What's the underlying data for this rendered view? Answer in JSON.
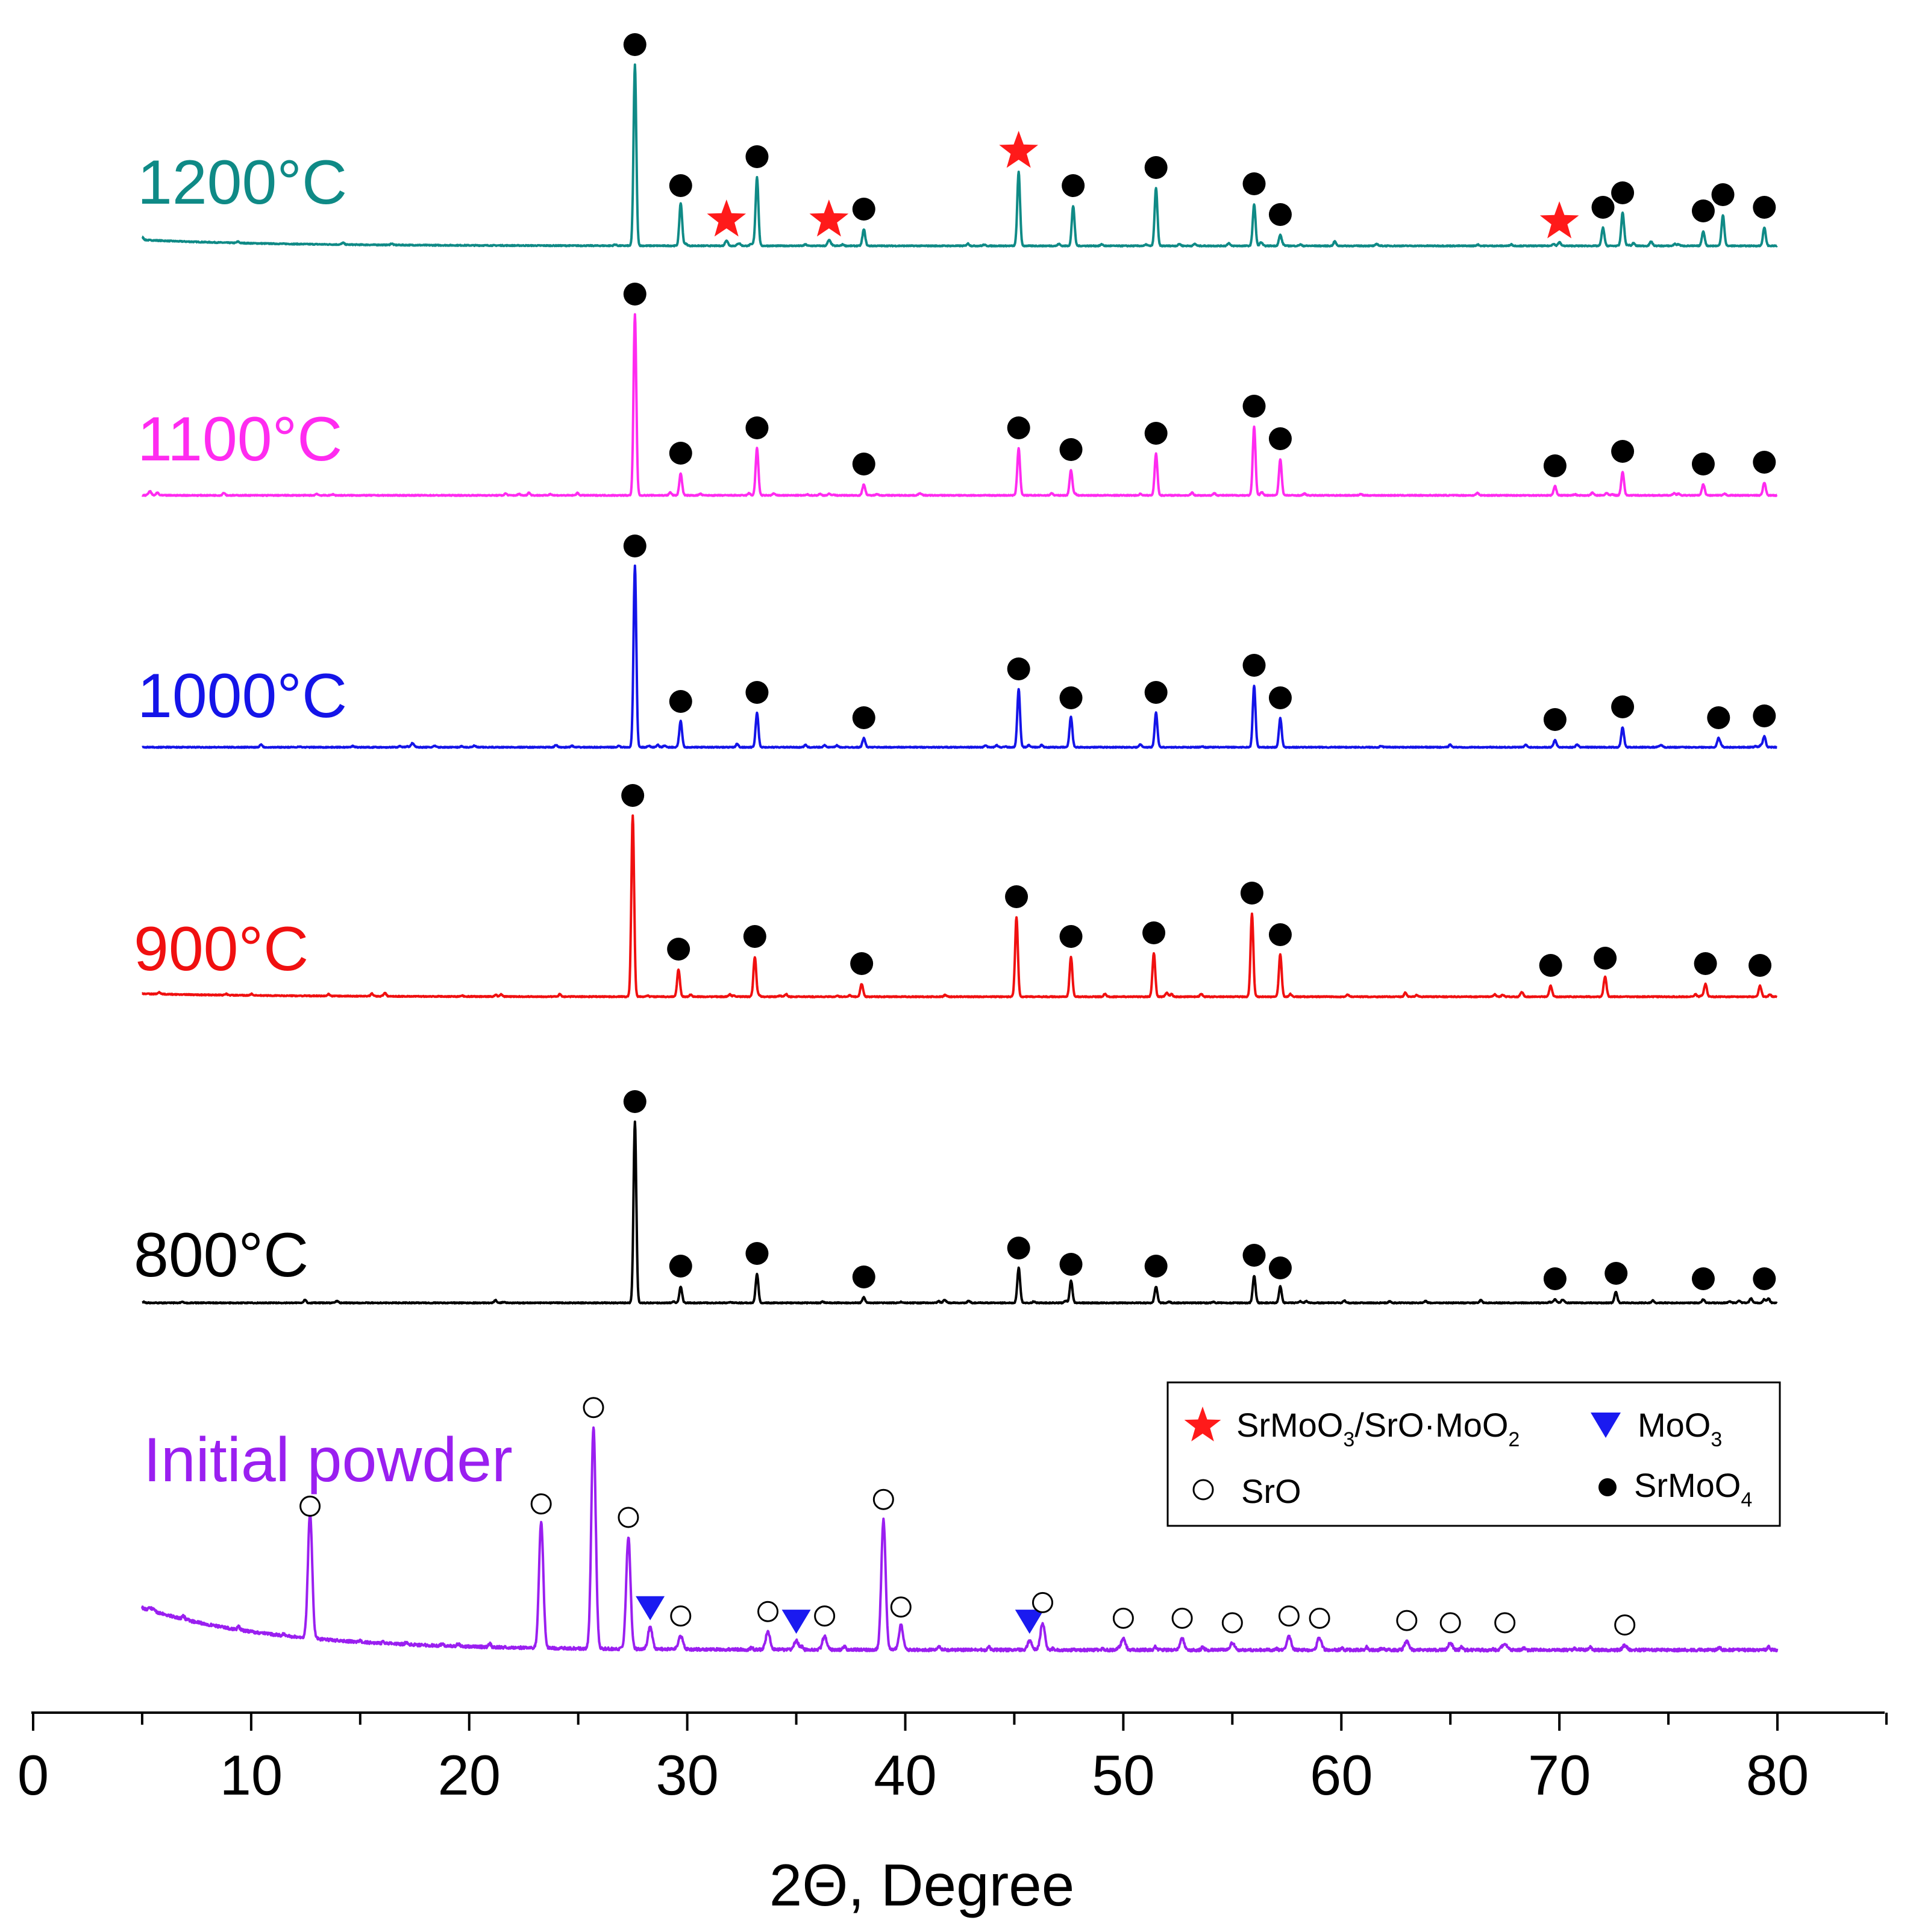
{
  "chart_data": {
    "type": "line",
    "title": "",
    "xlabel": "2Θ, Degree",
    "ylabel": "",
    "xlim": [
      0,
      85
    ],
    "x_ticks": [
      "0",
      "10",
      "20",
      "30",
      "40",
      "50",
      "60",
      "70",
      "80"
    ],
    "x_range_measured": [
      5,
      80
    ],
    "colors": {
      "1200": "#0f8a86",
      "1100": "#ff2bf0",
      "1000": "#1414e8",
      "900": "#f01010",
      "800": "#000000",
      "initial": "#9a1ff0",
      "star": "#ff1a1a",
      "triangle": "#1a1af0"
    },
    "series": [
      {
        "id": "s1200",
        "name": "1200°C",
        "peaks": [
          {
            "x": 27.6,
            "h": 1.0,
            "mark": "dot"
          },
          {
            "x": 29.7,
            "h": 0.22,
            "mark": "dot"
          },
          {
            "x": 31.8,
            "h": 0.03,
            "mark": "star"
          },
          {
            "x": 33.2,
            "h": 0.38,
            "mark": "dot"
          },
          {
            "x": 36.5,
            "h": 0.03,
            "mark": "star"
          },
          {
            "x": 38.1,
            "h": 0.09,
            "mark": "dot"
          },
          {
            "x": 45.2,
            "h": 0.41,
            "mark": "star"
          },
          {
            "x": 47.7,
            "h": 0.22,
            "mark": "dot"
          },
          {
            "x": 51.5,
            "h": 0.32,
            "mark": "dot"
          },
          {
            "x": 56.0,
            "h": 0.23,
            "mark": "dot"
          },
          {
            "x": 57.2,
            "h": 0.06,
            "mark": "dot"
          },
          {
            "x": 70.0,
            "h": 0.02,
            "mark": "star"
          },
          {
            "x": 72.0,
            "h": 0.1,
            "mark": "dot"
          },
          {
            "x": 72.9,
            "h": 0.18,
            "mark": "dot"
          },
          {
            "x": 76.6,
            "h": 0.08,
            "mark": "dot"
          },
          {
            "x": 77.5,
            "h": 0.17,
            "mark": "dot"
          },
          {
            "x": 79.4,
            "h": 0.1,
            "mark": "dot"
          }
        ]
      },
      {
        "id": "s1100",
        "name": "1100°C",
        "peaks": [
          {
            "x": 27.6,
            "h": 1.0,
            "mark": "dot"
          },
          {
            "x": 29.7,
            "h": 0.12,
            "mark": "dot"
          },
          {
            "x": 33.2,
            "h": 0.26,
            "mark": "dot"
          },
          {
            "x": 38.1,
            "h": 0.06,
            "mark": "dot"
          },
          {
            "x": 45.2,
            "h": 0.26,
            "mark": "dot"
          },
          {
            "x": 47.6,
            "h": 0.14,
            "mark": "dot"
          },
          {
            "x": 51.5,
            "h": 0.23,
            "mark": "dot"
          },
          {
            "x": 56.0,
            "h": 0.38,
            "mark": "dot"
          },
          {
            "x": 57.2,
            "h": 0.2,
            "mark": "dot"
          },
          {
            "x": 69.8,
            "h": 0.05,
            "mark": "dot"
          },
          {
            "x": 72.9,
            "h": 0.13,
            "mark": "dot"
          },
          {
            "x": 76.6,
            "h": 0.06,
            "mark": "dot"
          },
          {
            "x": 79.4,
            "h": 0.07,
            "mark": "dot"
          }
        ]
      },
      {
        "id": "s1000",
        "name": "1000°C",
        "peaks": [
          {
            "x": 27.6,
            "h": 1.0,
            "mark": "dot"
          },
          {
            "x": 29.7,
            "h": 0.14,
            "mark": "dot"
          },
          {
            "x": 33.2,
            "h": 0.19,
            "mark": "dot"
          },
          {
            "x": 38.1,
            "h": 0.05,
            "mark": "dot"
          },
          {
            "x": 45.2,
            "h": 0.32,
            "mark": "dot"
          },
          {
            "x": 47.6,
            "h": 0.16,
            "mark": "dot"
          },
          {
            "x": 51.5,
            "h": 0.19,
            "mark": "dot"
          },
          {
            "x": 56.0,
            "h": 0.34,
            "mark": "dot"
          },
          {
            "x": 57.2,
            "h": 0.16,
            "mark": "dot"
          },
          {
            "x": 69.8,
            "h": 0.04,
            "mark": "dot"
          },
          {
            "x": 72.9,
            "h": 0.11,
            "mark": "dot"
          },
          {
            "x": 77.3,
            "h": 0.05,
            "mark": "dot"
          },
          {
            "x": 79.4,
            "h": 0.06,
            "mark": "dot"
          }
        ]
      },
      {
        "id": "s900",
        "name": "900°C",
        "peaks": [
          {
            "x": 27.5,
            "h": 1.0,
            "mark": "dot"
          },
          {
            "x": 29.6,
            "h": 0.15,
            "mark": "dot"
          },
          {
            "x": 33.1,
            "h": 0.22,
            "mark": "dot"
          },
          {
            "x": 38.0,
            "h": 0.07,
            "mark": "dot"
          },
          {
            "x": 45.1,
            "h": 0.44,
            "mark": "dot"
          },
          {
            "x": 47.6,
            "h": 0.22,
            "mark": "dot"
          },
          {
            "x": 51.4,
            "h": 0.24,
            "mark": "dot"
          },
          {
            "x": 55.9,
            "h": 0.46,
            "mark": "dot"
          },
          {
            "x": 57.2,
            "h": 0.23,
            "mark": "dot"
          },
          {
            "x": 69.6,
            "h": 0.06,
            "mark": "dot"
          },
          {
            "x": 72.1,
            "h": 0.1,
            "mark": "dot"
          },
          {
            "x": 76.7,
            "h": 0.07,
            "mark": "dot"
          },
          {
            "x": 79.2,
            "h": 0.06,
            "mark": "dot"
          }
        ]
      },
      {
        "id": "s800",
        "name": "800°C",
        "peaks": [
          {
            "x": 27.6,
            "h": 1.0,
            "mark": "dot"
          },
          {
            "x": 29.7,
            "h": 0.09,
            "mark": "dot"
          },
          {
            "x": 33.2,
            "h": 0.16,
            "mark": "dot"
          },
          {
            "x": 38.1,
            "h": 0.03,
            "mark": "dot"
          },
          {
            "x": 45.2,
            "h": 0.19,
            "mark": "dot"
          },
          {
            "x": 47.6,
            "h": 0.1,
            "mark": "dot"
          },
          {
            "x": 51.5,
            "h": 0.09,
            "mark": "dot"
          },
          {
            "x": 56.0,
            "h": 0.15,
            "mark": "dot"
          },
          {
            "x": 57.2,
            "h": 0.08,
            "mark": "dot"
          },
          {
            "x": 69.8,
            "h": 0.02,
            "mark": "dot"
          },
          {
            "x": 72.6,
            "h": 0.05,
            "mark": "dot"
          },
          {
            "x": 76.6,
            "h": 0.02,
            "mark": "dot"
          },
          {
            "x": 79.4,
            "h": 0.02,
            "mark": "dot"
          }
        ]
      },
      {
        "id": "sinit",
        "name": "Initial powder",
        "peaks": [
          {
            "x": 12.7,
            "h": 0.55,
            "mark": "circle"
          },
          {
            "x": 23.3,
            "h": 0.56,
            "mark": "circle"
          },
          {
            "x": 25.7,
            "h": 0.99,
            "mark": "circle"
          },
          {
            "x": 27.3,
            "h": 0.5,
            "mark": "circle"
          },
          {
            "x": 28.3,
            "h": 0.1,
            "mark": "triangle"
          },
          {
            "x": 29.7,
            "h": 0.06,
            "mark": "circle"
          },
          {
            "x": 33.7,
            "h": 0.08,
            "mark": "circle"
          },
          {
            "x": 35.0,
            "h": 0.04,
            "mark": "triangle"
          },
          {
            "x": 36.3,
            "h": 0.06,
            "mark": "circle"
          },
          {
            "x": 39.0,
            "h": 0.58,
            "mark": "circle"
          },
          {
            "x": 39.8,
            "h": 0.1,
            "mark": "circle"
          },
          {
            "x": 45.7,
            "h": 0.04,
            "mark": "triangle"
          },
          {
            "x": 46.3,
            "h": 0.12,
            "mark": "circle"
          },
          {
            "x": 50.0,
            "h": 0.05,
            "mark": "circle"
          },
          {
            "x": 52.7,
            "h": 0.05,
            "mark": "circle"
          },
          {
            "x": 55.0,
            "h": 0.03,
            "mark": "circle"
          },
          {
            "x": 57.6,
            "h": 0.06,
            "mark": "circle"
          },
          {
            "x": 59.0,
            "h": 0.05,
            "mark": "circle"
          },
          {
            "x": 63.0,
            "h": 0.04,
            "mark": "circle"
          },
          {
            "x": 65.0,
            "h": 0.03,
            "mark": "circle"
          },
          {
            "x": 67.5,
            "h": 0.03,
            "mark": "circle"
          },
          {
            "x": 73.0,
            "h": 0.02,
            "mark": "circle"
          }
        ]
      }
    ],
    "legend": {
      "items": [
        {
          "mark": "star",
          "text": "SrMoO",
          "sub1": "3",
          "text2": "/SrO·MoO",
          "sub2": "2"
        },
        {
          "mark": "triangle",
          "text": "MoO",
          "sub1": "3"
        },
        {
          "mark": "circle",
          "text": "SrO"
        },
        {
          "mark": "dot",
          "text": "SrMoO",
          "sub1": "4"
        }
      ],
      "placement": "bottom-right"
    }
  }
}
